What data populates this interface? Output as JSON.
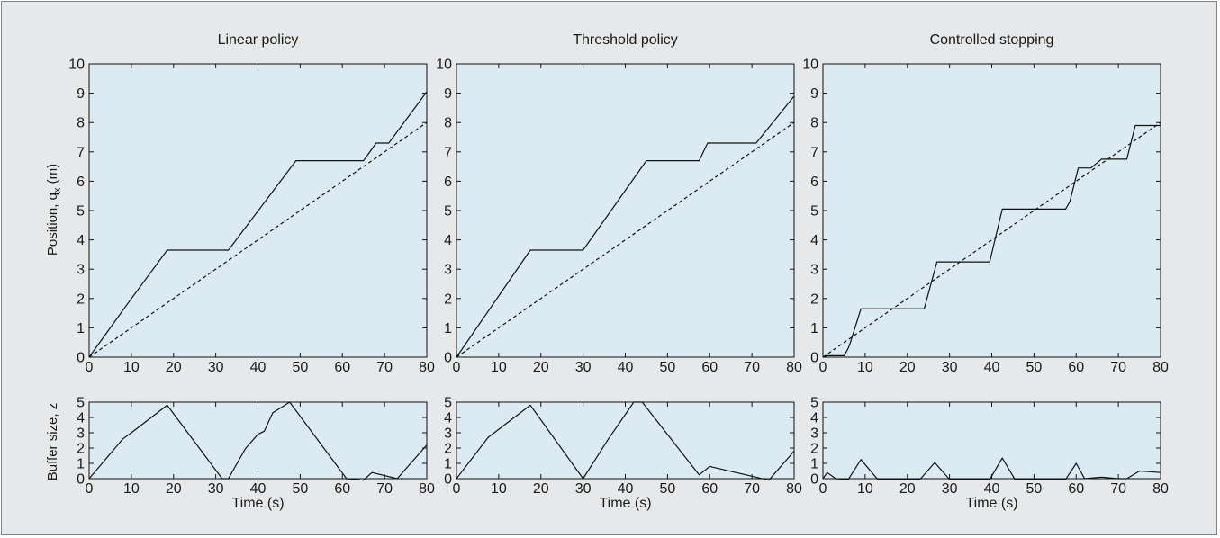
{
  "colors": {
    "frame_background": "#e6e8ea",
    "frame_border": "#7f8489",
    "plot_background": "#dcebf3",
    "line": "#111111"
  },
  "figure": {
    "position_ylabel_text": "Position, q",
    "position_ylabel_sub": "x",
    "position_ylabel_unit": " (m)",
    "buffer_ylabel": "Buffer size, z",
    "xlabel": "Time (s)"
  },
  "chart_data": [
    {
      "type": "line",
      "title": "Linear policy",
      "xlim": [
        0,
        80
      ],
      "x_ticks": [
        0,
        10,
        20,
        30,
        40,
        50,
        60,
        70,
        80
      ],
      "position": {
        "ylim": [
          0,
          10
        ],
        "y_ticks": [
          0,
          1,
          2,
          3,
          4,
          5,
          6,
          7,
          8,
          9,
          10
        ],
        "series": [
          {
            "style": "solid",
            "x": [
              0,
              9,
              18.5,
              33,
              49,
              65,
              68,
              71,
              80
            ],
            "y": [
              0,
              1.8,
              3.65,
              3.65,
              6.7,
              6.7,
              7.3,
              7.3,
              9.05
            ]
          },
          {
            "style": "dashed",
            "x": [
              0,
              80
            ],
            "y": [
              0,
              8
            ]
          }
        ]
      },
      "buffer": {
        "ylim": [
          0,
          5
        ],
        "y_ticks": [
          0,
          1,
          2,
          3,
          4,
          5
        ],
        "series": [
          {
            "style": "solid",
            "x": [
              0,
              8,
              10,
              18.5,
              31.5,
              33,
              37,
              40,
              41.5,
              43.5,
              47.5,
              61,
              65,
              67,
              73,
              80
            ],
            "y": [
              0,
              2.6,
              3.0,
              4.8,
              0,
              0,
              1.95,
              2.9,
              3.1,
              4.3,
              5.0,
              0,
              -0.1,
              0.4,
              0,
              2.2
            ]
          }
        ]
      }
    },
    {
      "type": "line",
      "title": "Threshold policy",
      "xlim": [
        0,
        80
      ],
      "x_ticks": [
        0,
        10,
        20,
        30,
        40,
        50,
        60,
        70,
        80
      ],
      "position": {
        "ylim": [
          0,
          10
        ],
        "y_ticks": [
          0,
          1,
          2,
          3,
          4,
          5,
          6,
          7,
          8,
          9,
          10
        ],
        "series": [
          {
            "style": "solid",
            "x": [
              0,
              17.5,
              30,
              45,
              57.5,
              59.5,
              71,
              80
            ],
            "y": [
              0,
              3.65,
              3.65,
              6.7,
              6.7,
              7.3,
              7.3,
              8.9
            ]
          },
          {
            "style": "dashed",
            "x": [
              0,
              80
            ],
            "y": [
              0,
              8
            ]
          }
        ]
      },
      "buffer": {
        "ylim": [
          0,
          5
        ],
        "y_ticks": [
          0,
          1,
          2,
          3,
          4,
          5
        ],
        "series": [
          {
            "style": "solid",
            "x": [
              0,
              7.5,
              17.5,
              30,
              36,
              42,
              44,
              57.5,
              60,
              74,
              80
            ],
            "y": [
              0,
              2.7,
              4.8,
              0,
              2.6,
              5.0,
              5.0,
              0.25,
              0.8,
              -0.1,
              1.8
            ]
          }
        ]
      }
    },
    {
      "type": "line",
      "title": "Controlled stopping",
      "xlim": [
        0,
        80
      ],
      "x_ticks": [
        0,
        10,
        20,
        30,
        40,
        50,
        60,
        70,
        80
      ],
      "position": {
        "ylim": [
          0,
          10
        ],
        "y_ticks": [
          0,
          1,
          2,
          3,
          4,
          5,
          6,
          7,
          8,
          9,
          10
        ],
        "series": [
          {
            "style": "solid",
            "x": [
              0,
              1,
              5,
              6,
              6.5,
              9,
              24,
              27,
              39.5,
              42.5,
              57.5,
              58.5,
              60.5,
              63.5,
              66,
              72,
              74,
              80
            ],
            "y": [
              0,
              0.05,
              0.05,
              0.3,
              0.5,
              1.65,
              1.65,
              3.25,
              3.25,
              5.05,
              5.05,
              5.3,
              6.45,
              6.45,
              6.75,
              6.75,
              7.9,
              7.9
            ]
          },
          {
            "style": "dashed",
            "x": [
              0,
              80
            ],
            "y": [
              0,
              8
            ]
          }
        ]
      },
      "buffer": {
        "ylim": [
          0,
          5
        ],
        "y_ticks": [
          0,
          1,
          2,
          3,
          4,
          5
        ],
        "series": [
          {
            "style": "solid",
            "x": [
              0,
              1,
              3,
              6,
              9,
              13,
              23,
              26.5,
              30,
              39.5,
              42.5,
              45.5,
              57.5,
              60,
              62,
              66,
              70,
              72,
              75,
              80
            ],
            "y": [
              0,
              0.4,
              0,
              -0.05,
              1.25,
              -0.05,
              -0.05,
              1.05,
              -0.05,
              -0.05,
              1.35,
              -0.05,
              -0.05,
              1.0,
              0,
              0.1,
              0,
              0,
              0.5,
              0.4
            ]
          }
        ]
      }
    }
  ]
}
